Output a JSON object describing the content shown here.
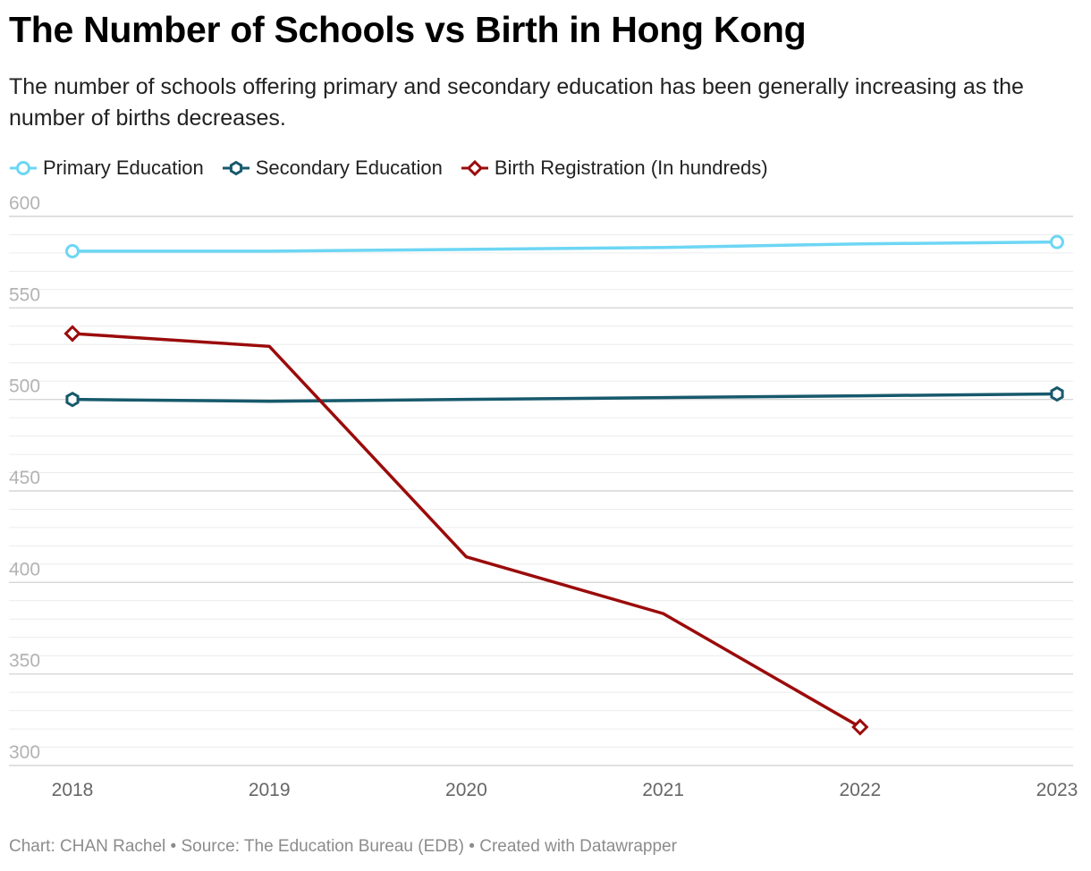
{
  "title": "The Number of Schools vs Birth in Hong Kong",
  "subtitle": "The number of schools offering primary and secondary education has been generally increasing as the number of births decreases.",
  "footer": {
    "byline": "Chart: CHAN Rachel",
    "separator": " • ",
    "source": "Source: The Education Bureau (EDB)",
    "created": "Created with Datawrapper"
  },
  "chart_data": {
    "type": "line",
    "title": "The Number of Schools vs Birth in Hong Kong",
    "xlabel": "",
    "ylabel": "",
    "x": [
      "2018",
      "2019",
      "2020",
      "2021",
      "2022",
      "2023"
    ],
    "ylim": [
      300,
      600
    ],
    "yticks": [
      300,
      350,
      400,
      450,
      500,
      550,
      600
    ],
    "grid": true,
    "legend_position": "top-left",
    "series": [
      {
        "name": "Primary Education",
        "color": "#6dd6f4",
        "marker": "circle",
        "values": [
          581,
          581,
          582,
          583,
          585,
          586
        ]
      },
      {
        "name": "Secondary Education",
        "color": "#17596c",
        "marker": "hexagon",
        "values": [
          500,
          499,
          500,
          501,
          502,
          503
        ]
      },
      {
        "name": "Birth Registration (In hundreds)",
        "color": "#9b0b0b",
        "marker": "diamond",
        "values": [
          536,
          529,
          414,
          383,
          321,
          null
        ]
      }
    ]
  }
}
